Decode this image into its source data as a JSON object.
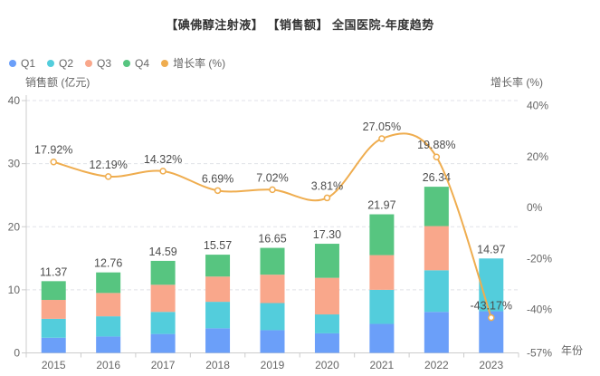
{
  "title": "【碘佛醇注射液】 【销售额】 全国医院-年度趋势",
  "chart_data": {
    "type": "combo",
    "bar_mode": "stacked",
    "grid": "dashed-horizontal",
    "legend_position": "top-left",
    "categories": [
      "2015",
      "2016",
      "2017",
      "2018",
      "2019",
      "2020",
      "2021",
      "2022",
      "2023"
    ],
    "series": [
      {
        "name": "Q1",
        "type": "bar",
        "color": "#6B9FF9",
        "values": [
          2.4,
          2.6,
          3.0,
          3.9,
          3.6,
          3.1,
          4.6,
          6.5,
          6.6
        ]
      },
      {
        "name": "Q2",
        "type": "bar",
        "color": "#53CDDC",
        "values": [
          3.0,
          3.2,
          3.5,
          4.2,
          4.3,
          3.0,
          5.4,
          6.6,
          8.37
        ]
      },
      {
        "name": "Q3",
        "type": "bar",
        "color": "#F9A78B",
        "values": [
          3.0,
          3.7,
          4.3,
          4.0,
          4.5,
          5.8,
          5.5,
          7.0,
          0
        ]
      },
      {
        "name": "Q4",
        "type": "bar",
        "color": "#57C580",
        "values": [
          2.97,
          3.26,
          3.79,
          3.47,
          4.25,
          5.4,
          6.47,
          6.24,
          0
        ]
      },
      {
        "name": "增长率 (%)",
        "type": "line",
        "color": "#EFAD4F",
        "values": [
          17.92,
          12.19,
          14.32,
          6.69,
          7.02,
          3.81,
          27.05,
          19.88,
          -43.17
        ]
      }
    ],
    "bar_totals": [
      "11.37",
      "12.76",
      "14.59",
      "15.57",
      "16.65",
      "17.30",
      "21.97",
      "26.34",
      "14.97"
    ],
    "line_labels": [
      "17.92%",
      "12.19%",
      "14.32%",
      "6.69%",
      "7.02%",
      "3.81%",
      "27.05%",
      "19.88%",
      "-43.17%"
    ],
    "left_axis": {
      "name": "销售额 (亿元)",
      "min": 0,
      "max": 40,
      "ticks": [
        "40",
        "30",
        "20",
        "10",
        "0"
      ],
      "tick_values": [
        40,
        30,
        20,
        10,
        0
      ]
    },
    "right_axis": {
      "name": "增长率 (%)",
      "min": -57,
      "max": 42,
      "ticks": [
        "40%",
        "20%",
        "0%",
        "-20%",
        "-40%",
        "-57%"
      ],
      "tick_values": [
        40,
        20,
        0,
        -20,
        -40,
        -57
      ]
    },
    "x_axis": {
      "name": "年份"
    },
    "colors": {
      "grid": "#E0E2E8",
      "axis_line": "#CCCCCC",
      "tick_text": "#666666",
      "value_label": "#4D4D4D",
      "title_text": "#333333"
    }
  }
}
